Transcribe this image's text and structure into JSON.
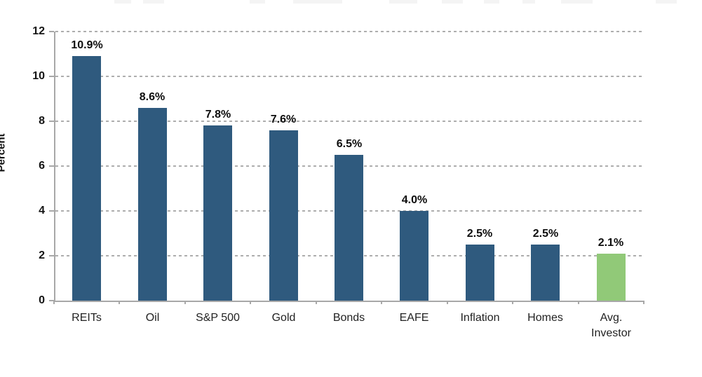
{
  "chart_data": {
    "type": "bar",
    "title": "",
    "categories": [
      "REITs",
      "Oil",
      "S&P 500",
      "Gold",
      "Bonds",
      "EAFE",
      "Inflation",
      "Homes",
      "Avg.\nInvestor"
    ],
    "values": [
      10.9,
      8.6,
      7.8,
      7.6,
      6.5,
      4.0,
      2.5,
      2.5,
      2.1
    ],
    "value_labels": [
      "10.9%",
      "8.6%",
      "7.8%",
      "7.6%",
      "6.5%",
      "4.0%",
      "2.5%",
      "2.5%",
      "2.1%"
    ],
    "xlabel": "",
    "ylabel": "Percent",
    "ylim": [
      0,
      12
    ],
    "yticks": [
      0,
      2,
      4,
      6,
      8,
      10,
      12
    ],
    "ytick_labels": [
      "0",
      "2",
      "4",
      "6",
      "8",
      "10",
      "12"
    ],
    "grid": "horizontal-dashed",
    "legend": "none",
    "colors": {
      "bar": "#2F5A7E",
      "highlight_bar": "#91C978",
      "gridline": "#aeaeae",
      "axis": "#a8a8a8",
      "value_label": "#0d0d0d",
      "category_label": "#222222"
    },
    "highlight_index": 8
  }
}
